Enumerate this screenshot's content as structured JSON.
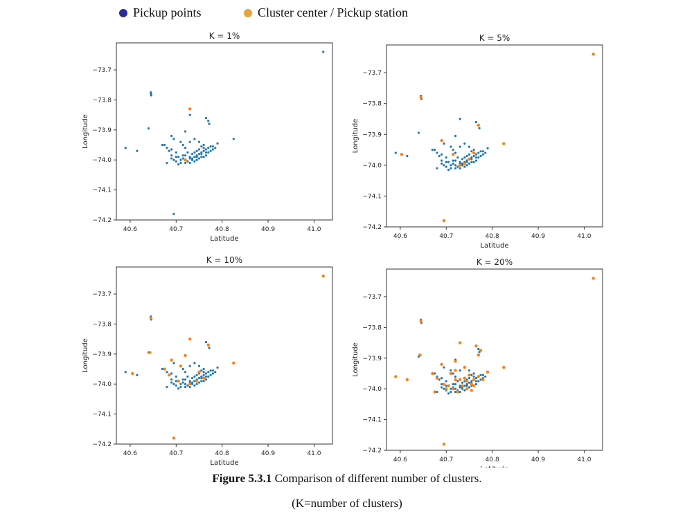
{
  "legend": {
    "pickup_label": "Pickup points",
    "center_label": "Cluster center / Pickup station",
    "pickup_color": "#1f77b4",
    "center_color": "#ff7f0e",
    "pickup_icon_color": "#2b2b9a",
    "center_icon_color": "#e8a33a"
  },
  "caption": {
    "figure_label": "Figure 5.3.1",
    "text": " Comparison of different number of clusters.",
    "subtext": "(K=number of clusters)"
  },
  "chart_data": [
    {
      "type": "scatter",
      "title": "K = 1%",
      "xlabel": "Latitude",
      "ylabel": "Longitude",
      "xlim": [
        40.57,
        41.04
      ],
      "ylim": [
        -74.2,
        -73.61
      ],
      "xticks": [
        "40.6",
        "40.7",
        "40.8",
        "40.9",
        "41.0"
      ],
      "yticks": [
        "−73.7",
        "−73.8",
        "−73.9",
        "−74.0",
        "−74.1",
        "−74.2"
      ],
      "grid": false,
      "centers": [
        [
          40.73,
          -73.83
        ],
        [
          40.72,
          -74.0
        ]
      ]
    },
    {
      "type": "scatter",
      "title": "K = 5%",
      "xlabel": "Latitude",
      "ylabel": "Longitude",
      "xlim": [
        40.57,
        41.04
      ],
      "ylim": [
        -74.2,
        -73.61
      ],
      "xticks": [
        "40.6",
        "40.7",
        "40.8",
        "40.9",
        "41.0"
      ],
      "yticks": [
        "−73.7",
        "−73.8",
        "−73.9",
        "−74.0",
        "−74.1",
        "−74.2"
      ],
      "grid": false,
      "centers": [
        [
          41.02,
          -73.64
        ],
        [
          40.645,
          -73.78
        ],
        [
          40.603,
          -73.965
        ],
        [
          40.69,
          -73.92
        ],
        [
          40.695,
          -74.18
        ],
        [
          40.715,
          -73.965
        ],
        [
          40.74,
          -73.995
        ],
        [
          40.75,
          -73.98
        ],
        [
          40.76,
          -73.96
        ],
        [
          40.77,
          -73.87
        ],
        [
          40.825,
          -73.93
        ],
        [
          40.73,
          -74.0
        ]
      ]
    },
    {
      "type": "scatter",
      "title": "K = 10%",
      "xlabel": "Latitude",
      "ylabel": "Longitude",
      "xlim": [
        40.57,
        41.04
      ],
      "ylim": [
        -74.2,
        -73.61
      ],
      "xticks": [
        "40.6",
        "40.7",
        "40.8",
        "40.9",
        "41.0"
      ],
      "yticks": [
        "−73.7",
        "−73.8",
        "−73.9",
        "−74.0",
        "−74.1",
        "−74.2"
      ],
      "grid": false,
      "centers": [
        [
          41.02,
          -73.64
        ],
        [
          40.645,
          -73.78
        ],
        [
          40.643,
          -73.895
        ],
        [
          40.605,
          -73.965
        ],
        [
          40.695,
          -74.18
        ],
        [
          40.73,
          -73.85
        ],
        [
          40.72,
          -73.905
        ],
        [
          40.71,
          -73.94
        ],
        [
          40.69,
          -73.92
        ],
        [
          40.675,
          -73.95
        ],
        [
          40.685,
          -73.97
        ],
        [
          40.705,
          -73.99
        ],
        [
          40.73,
          -74.0
        ],
        [
          40.745,
          -73.99
        ],
        [
          40.76,
          -73.98
        ],
        [
          40.77,
          -73.87
        ],
        [
          40.825,
          -73.93
        ],
        [
          40.75,
          -73.96
        ]
      ]
    },
    {
      "type": "scatter",
      "title": "K = 20%",
      "xlabel": "Latitude",
      "ylabel": "Longitude",
      "xlim": [
        40.57,
        41.04
      ],
      "ylim": [
        -74.2,
        -73.61
      ],
      "xticks": [
        "40.6",
        "40.7",
        "40.8",
        "40.9",
        "41.0"
      ],
      "yticks": [
        "−73.7",
        "−73.8",
        "−73.9",
        "−74.0",
        "−74.1",
        "−74.2"
      ],
      "grid": false,
      "centers": [
        [
          41.02,
          -73.64
        ],
        [
          40.645,
          -73.78
        ],
        [
          40.643,
          -73.89
        ],
        [
          40.59,
          -73.96
        ],
        [
          40.615,
          -73.97
        ],
        [
          40.695,
          -74.18
        ],
        [
          40.73,
          -73.85
        ],
        [
          40.72,
          -73.91
        ],
        [
          40.69,
          -73.92
        ],
        [
          40.67,
          -73.95
        ],
        [
          40.675,
          -74.01
        ],
        [
          40.765,
          -73.86
        ],
        [
          40.775,
          -73.875
        ],
        [
          40.77,
          -73.89
        ],
        [
          40.825,
          -73.93
        ],
        [
          40.79,
          -73.945
        ],
        [
          40.705,
          -73.99
        ],
        [
          40.715,
          -74.0
        ],
        [
          40.725,
          -74.01
        ],
        [
          40.735,
          -73.99
        ],
        [
          40.745,
          -74.0
        ],
        [
          40.755,
          -73.985
        ],
        [
          40.76,
          -73.97
        ],
        [
          40.75,
          -73.955
        ],
        [
          40.74,
          -73.965
        ],
        [
          40.77,
          -73.96
        ],
        [
          40.73,
          -73.97
        ],
        [
          40.72,
          -73.97
        ],
        [
          40.71,
          -73.95
        ],
        [
          40.7,
          -74.0
        ],
        [
          40.74,
          -73.93
        ],
        [
          40.76,
          -73.99
        ],
        [
          40.78,
          -73.97
        ],
        [
          40.68,
          -73.965
        ],
        [
          40.695,
          -73.985
        ],
        [
          40.755,
          -74.005
        ],
        [
          40.72,
          -73.94
        ],
        [
          40.745,
          -73.975
        ]
      ]
    }
  ],
  "pickup_points": [
    [
      41.02,
      -73.64
    ],
    [
      40.645,
      -73.775
    ],
    [
      40.645,
      -73.78
    ],
    [
      40.646,
      -73.785
    ],
    [
      40.64,
      -73.895
    ],
    [
      40.59,
      -73.96
    ],
    [
      40.615,
      -73.97
    ],
    [
      40.695,
      -74.18
    ],
    [
      40.73,
      -73.85
    ],
    [
      40.765,
      -73.86
    ],
    [
      40.77,
      -73.87
    ],
    [
      40.772,
      -73.88
    ],
    [
      40.825,
      -73.93
    ],
    [
      40.69,
      -73.92
    ],
    [
      40.695,
      -73.93
    ],
    [
      40.72,
      -73.905
    ],
    [
      40.71,
      -73.94
    ],
    [
      40.675,
      -73.95
    ],
    [
      40.68,
      -73.96
    ],
    [
      40.67,
      -73.95
    ],
    [
      40.685,
      -73.97
    ],
    [
      40.69,
      -73.985
    ],
    [
      40.695,
      -74.0
    ],
    [
      40.68,
      -74.01
    ],
    [
      40.7,
      -74.005
    ],
    [
      40.705,
      -74.015
    ],
    [
      40.71,
      -74.01
    ],
    [
      40.715,
      -73.995
    ],
    [
      40.72,
      -74.0
    ],
    [
      40.725,
      -74.005
    ],
    [
      40.73,
      -73.995
    ],
    [
      40.735,
      -74.0
    ],
    [
      40.74,
      -73.99
    ],
    [
      40.745,
      -73.985
    ],
    [
      40.75,
      -73.98
    ],
    [
      40.755,
      -73.975
    ],
    [
      40.76,
      -73.97
    ],
    [
      40.765,
      -73.965
    ],
    [
      40.77,
      -73.96
    ],
    [
      40.775,
      -73.955
    ],
    [
      40.78,
      -73.955
    ],
    [
      40.785,
      -73.96
    ],
    [
      40.79,
      -73.945
    ],
    [
      40.755,
      -73.955
    ],
    [
      40.76,
      -73.99
    ],
    [
      40.77,
      -73.975
    ],
    [
      40.74,
      -74.005
    ],
    [
      40.73,
      -74.01
    ],
    [
      40.72,
      -74.01
    ],
    [
      40.745,
      -73.97
    ],
    [
      40.75,
      -73.995
    ],
    [
      40.735,
      -73.98
    ],
    [
      40.725,
      -73.975
    ],
    [
      40.715,
      -73.985
    ],
    [
      40.705,
      -73.99
    ],
    [
      40.7,
      -73.975
    ],
    [
      40.69,
      -73.965
    ],
    [
      40.74,
      -73.93
    ],
    [
      40.75,
      -73.94
    ],
    [
      40.76,
      -73.95
    ],
    [
      40.715,
      -73.95
    ],
    [
      40.72,
      -73.96
    ],
    [
      40.73,
      -73.94
    ],
    [
      40.745,
      -74.0
    ],
    [
      40.755,
      -73.99
    ],
    [
      40.765,
      -73.985
    ],
    [
      40.775,
      -73.97
    ],
    [
      40.78,
      -73.965
    ],
    [
      40.71,
      -74.0
    ],
    [
      40.73,
      -73.99
    ],
    [
      40.74,
      -73.975
    ],
    [
      40.75,
      -73.965
    ],
    [
      40.76,
      -73.96
    ],
    [
      40.72,
      -73.985
    ],
    [
      40.735,
      -73.995
    ],
    [
      40.745,
      -73.99
    ],
    [
      40.755,
      -73.98
    ],
    [
      40.765,
      -73.975
    ],
    [
      40.7,
      -73.99
    ],
    [
      40.69,
      -73.995
    ]
  ]
}
